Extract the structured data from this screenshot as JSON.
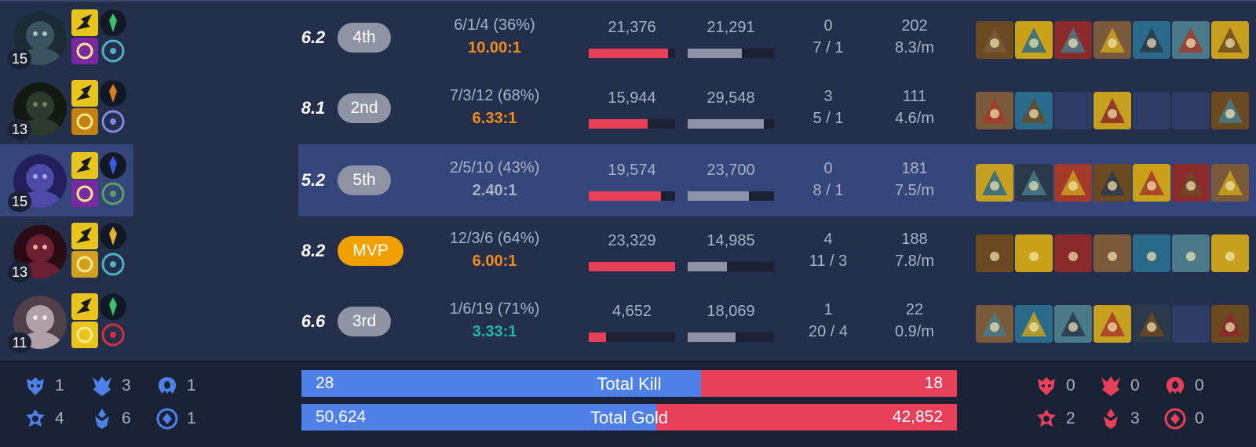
{
  "colors": {
    "background": "#24304b",
    "highlight": "#35477a",
    "footer": "#1a2336",
    "blue_team": "#4f80e8",
    "red_team": "#e8405a",
    "damage_bar": "#e8405a",
    "taken_bar": "#8e92a8",
    "ratio_orange": "#f08c1e",
    "ratio_green": "#1fb8a0",
    "ratio_gray": "#a9b2c4",
    "mvp": "#f0a000",
    "rank_badge": "#8e94a3"
  },
  "players": [
    {
      "level": "15",
      "champion_icon": "champion-portrait-icon",
      "spells": [
        "flash-spell-icon",
        "smite-spell-icon"
      ],
      "runes": [
        "keystone-rune-icon",
        "secondary-rune-icon"
      ],
      "score": "6.2",
      "rank": "4th",
      "mvp": false,
      "kda": "6/1/4 (36%)",
      "kda_ratio": "10.00:1",
      "ratio_color": "#f08c1e",
      "damage_dealt": "21,376",
      "damage_dealt_fraction": 0.92,
      "damage_taken": "21,291",
      "damage_taken_fraction": 0.63,
      "control_wards": "0",
      "wards": "7 / 1",
      "cs": "202",
      "cs_per_min": "8.3/m",
      "items": [
        "item-1-icon",
        "item-2-icon",
        "item-3-icon",
        "item-4-icon",
        "item-5-icon",
        "item-6-icon",
        "trinket-icon"
      ],
      "highlight": false
    },
    {
      "level": "13",
      "champion_icon": "champion-portrait-icon",
      "spells": [
        "flash-spell-icon",
        "ignite-spell-icon"
      ],
      "runes": [
        "keystone-rune-icon",
        "secondary-rune-icon"
      ],
      "score": "8.1",
      "rank": "2nd",
      "mvp": false,
      "kda": "7/3/12 (68%)",
      "kda_ratio": "6.33:1",
      "ratio_color": "#f08c1e",
      "damage_dealt": "15,944",
      "damage_dealt_fraction": 0.68,
      "damage_taken": "29,548",
      "damage_taken_fraction": 0.88,
      "control_wards": "3",
      "wards": "5 / 1",
      "cs": "111",
      "cs_per_min": "4.6/m",
      "items": [
        "item-1-icon",
        "item-2-icon",
        "empty",
        "item-4-icon",
        "empty",
        "empty",
        "trinket-icon"
      ],
      "highlight": false
    },
    {
      "level": "15",
      "champion_icon": "champion-portrait-icon",
      "spells": [
        "flash-spell-icon",
        "teleport-spell-icon"
      ],
      "runes": [
        "keystone-rune-icon",
        "secondary-rune-icon"
      ],
      "score": "5.2",
      "rank": "5th",
      "mvp": false,
      "kda": "2/5/10 (43%)",
      "kda_ratio": "2.40:1",
      "ratio_color": "#a9b2c4",
      "damage_dealt": "19,574",
      "damage_dealt_fraction": 0.84,
      "damage_taken": "23,700",
      "damage_taken_fraction": 0.71,
      "control_wards": "0",
      "wards": "8 / 1",
      "cs": "181",
      "cs_per_min": "7.5/m",
      "items": [
        "item-1-icon",
        "item-2-icon",
        "item-3-icon",
        "item-4-icon",
        "item-5-icon",
        "item-6-icon",
        "trinket-icon"
      ],
      "highlight": true
    },
    {
      "level": "13",
      "champion_icon": "champion-portrait-icon",
      "spells": [
        "flash-spell-icon",
        "exhaust-spell-icon"
      ],
      "runes": [
        "keystone-rune-icon",
        "secondary-rune-icon"
      ],
      "score": "8.2",
      "rank": "MVP",
      "mvp": true,
      "kda": "12/3/6 (64%)",
      "kda_ratio": "6.00:1",
      "ratio_color": "#f08c1e",
      "damage_dealt": "23,329",
      "damage_dealt_fraction": 1.0,
      "damage_taken": "14,985",
      "damage_taken_fraction": 0.45,
      "control_wards": "4",
      "wards": "11 / 3",
      "cs": "188",
      "cs_per_min": "7.8/m",
      "items": [
        "item-1-icon",
        "item-2-icon",
        "item-3-icon",
        "item-4-icon",
        "item-5-icon",
        "item-6-icon",
        "trinket-icon"
      ],
      "highlight": false
    },
    {
      "level": "11",
      "champion_icon": "champion-portrait-icon",
      "spells": [
        "heal-spell-icon",
        "ghost-spell-icon"
      ],
      "runes": [
        "keystone-rune-icon",
        "secondary-rune-icon"
      ],
      "score": "6.6",
      "rank": "3rd",
      "mvp": false,
      "kda": "1/6/19 (71%)",
      "kda_ratio": "3.33:1",
      "ratio_color": "#1fb8a0",
      "damage_dealt": "4,652",
      "damage_dealt_fraction": 0.2,
      "damage_taken": "18,069",
      "damage_taken_fraction": 0.55,
      "control_wards": "1",
      "wards": "20 / 4",
      "cs": "22",
      "cs_per_min": "0.9/m",
      "items": [
        "item-1-icon",
        "item-2-icon",
        "item-3-icon",
        "item-4-icon",
        "item-5-icon",
        "empty",
        "trinket-icon"
      ],
      "highlight": false
    }
  ],
  "totals": {
    "kill": {
      "label": "Total Kill",
      "blue": "28",
      "red": "18",
      "blue_fraction": 0.609
    },
    "gold": {
      "label": "Total Gold",
      "blue": "50,624",
      "red": "42,852",
      "blue_fraction": 0.541
    }
  },
  "objectives": {
    "blue": {
      "baron": "1",
      "dragon": "3",
      "herald": "1",
      "tower": "4",
      "inhibitor": "6",
      "other": "1"
    },
    "red": {
      "baron": "0",
      "dragon": "0",
      "herald": "0",
      "tower": "2",
      "inhibitor": "3",
      "other": "0"
    }
  }
}
